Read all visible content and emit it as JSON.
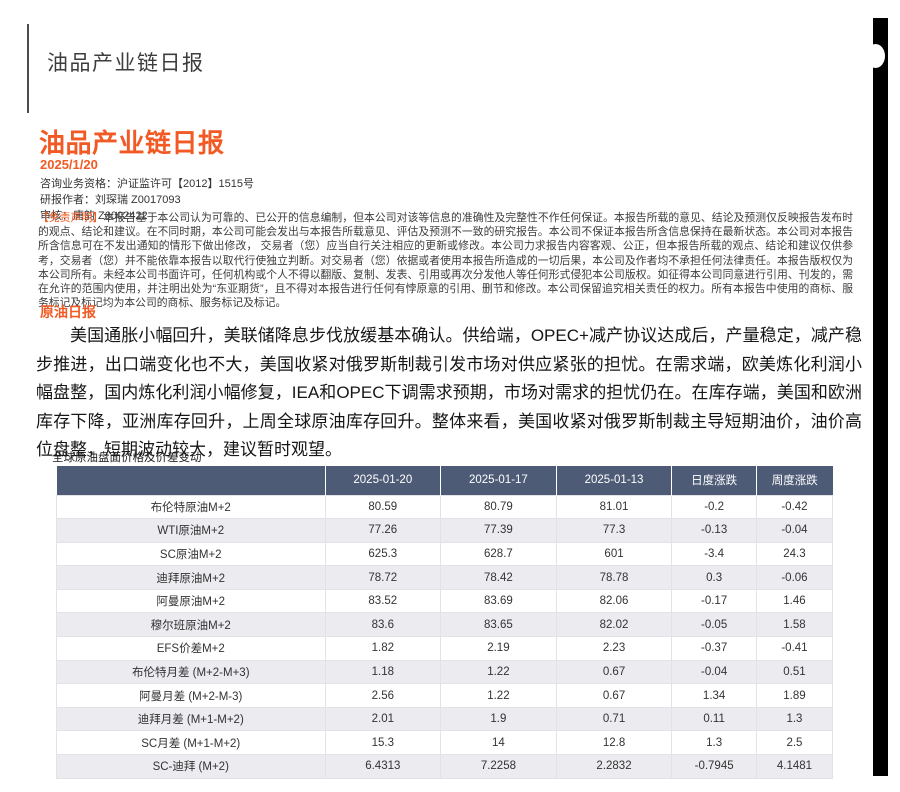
{
  "colors": {
    "accent_orange": "#f15a24",
    "table_header_bg": "#4e5b77",
    "row_stripe": "#ebebf0",
    "scrollbar": "#000000"
  },
  "top_header": "油品产业链日报",
  "report": {
    "title": "油品产业链日报",
    "date": "2025/1/20",
    "credentials": {
      "license": "咨询业务资格：沪证监许可【2012】1515号",
      "author": "研报作者：刘琛瑞 Z0017093",
      "reviewer": "审核：唐韵 Z0002422"
    },
    "disclaimer_label": "【免责声明】",
    "disclaimer_text": "本报告基于本公司认为可靠的、已公开的信息编制，但本公司对该等信息的准确性及完整性不作任何保证。本报告所载的意见、结论及预测仅反映报告发布时的观点、结论和建议。在不同时期，本公司可能会发出与本报告所载意见、评估及预测不一致的研究报告。本公司不保证本报告所含信息保持在最新状态。本公司对本报告所含信息可在不发出通知的情形下做出修改， 交易者（您）应当自行关注相应的更新或修改。本公司力求报告内容客观、公正，但本报告所载的观点、结论和建议仅供参考，交易者（您）并不能依靠本报告以取代行使独立判断。对交易者（您）依据或者使用本报告所造成的一切后果，本公司及作者均不承担任何法律责任。本报告版权仅为本公司所有。未经本公司书面许可，任何机构或个人不得以翻版、复制、发表、引用或再次分发他人等任何形式侵犯本公司版权。如征得本公司同意进行引用、刊发的，需在允许的范围内使用，并注明出处为“东亚期货”，且不得对本报告进行任何有悖原意的引用、删节和修改。本公司保留追究相关责任的权力。所有本报告中使用的商标、服务标记及标记均为本公司的商标、服务标记及标记。"
  },
  "section": {
    "heading": "原油日报",
    "paragraph": "美国通胀小幅回升，美联储降息步伐放缓基本确认。供给端，OPEC+减产协议达成后，产量稳定，减产稳步推进，出口端变化也不大，美国收紧对俄罗斯制裁引发市场对供应紧张的担忧。在需求端，欧美炼化利润小幅盘整，国内炼化利润小幅修复，IEA和OPEC下调需求预期，市场对需求的担忧仍在。在库存端，美国和欧洲库存下降，亚洲库存回升，上周全球原油库存回升。整体来看，美国收紧对俄罗斯制裁主导短期油价，油价高位盘整，短期波动较大，建议暂时观望。"
  },
  "table": {
    "caption": "全球原油盘面价格及价差变动",
    "headers": [
      "",
      "2025-01-20",
      "2025-01-17",
      "2025-01-13",
      "日度涨跌",
      "周度涨跌"
    ],
    "rows": [
      [
        "布伦特原油M+2",
        "80.59",
        "80.79",
        "81.01",
        "-0.2",
        "-0.42"
      ],
      [
        "WTI原油M+2",
        "77.26",
        "77.39",
        "77.3",
        "-0.13",
        "-0.04"
      ],
      [
        "SC原油M+2",
        "625.3",
        "628.7",
        "601",
        "-3.4",
        "24.3"
      ],
      [
        "迪拜原油M+2",
        "78.72",
        "78.42",
        "78.78",
        "0.3",
        "-0.06"
      ],
      [
        "阿曼原油M+2",
        "83.52",
        "83.69",
        "82.06",
        "-0.17",
        "1.46"
      ],
      [
        "穆尔班原油M+2",
        "83.6",
        "83.65",
        "82.02",
        "-0.05",
        "1.58"
      ],
      [
        "EFS价差M+2",
        "1.82",
        "2.19",
        "2.23",
        "-0.37",
        "-0.41"
      ],
      [
        "布伦特月差 (M+2-M+3)",
        "1.18",
        "1.22",
        "0.67",
        "-0.04",
        "0.51"
      ],
      [
        "阿曼月差 (M+2-M-3)",
        "2.56",
        "1.22",
        "0.67",
        "1.34",
        "1.89"
      ],
      [
        "迪拜月差 (M+1-M+2)",
        "2.01",
        "1.9",
        "0.71",
        "0.11",
        "1.3"
      ],
      [
        "SC月差 (M+1-M+2)",
        "15.3",
        "14",
        "12.8",
        "1.3",
        "2.5"
      ],
      [
        "SC-迪拜 (M+2)",
        "6.4313",
        "7.2258",
        "2.2832",
        "-0.7945",
        "4.1481"
      ]
    ]
  }
}
